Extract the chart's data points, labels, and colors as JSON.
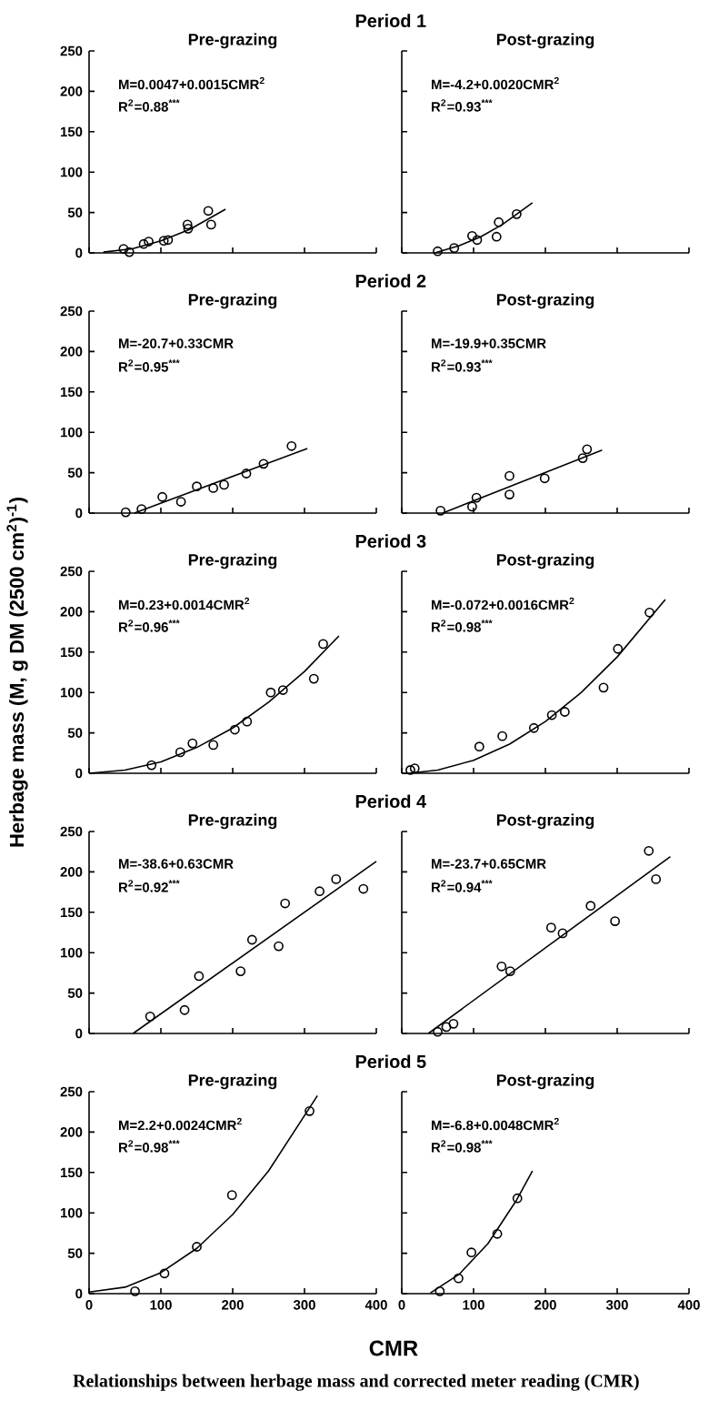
{
  "chart_data": [
    {
      "type": "scatter",
      "title": "Period 1",
      "subtitle": "Pre-grazing",
      "xlim": [
        0,
        400
      ],
      "ylim": [
        0,
        250
      ],
      "xticks": [
        0,
        100,
        200,
        300,
        400
      ],
      "yticks": [
        0,
        50,
        100,
        150,
        200,
        250
      ],
      "tick_labels": "y",
      "annotations": [
        "M=0.0047+0.0015CMR$^{2}$",
        "R$^{2}$=0.88$^{***}$"
      ],
      "series": [
        {
          "marker": "circle",
          "color": "#000000",
          "x": [
            48,
            56,
            76,
            83,
            104,
            110,
            137,
            138,
            166,
            170
          ],
          "values": [
            5,
            1,
            11,
            14,
            15,
            16,
            35,
            30,
            52,
            35
          ]
        },
        {
          "type": "line",
          "color": "#000000",
          "x": [
            20,
            60,
            100,
            140,
            190
          ],
          "values": [
            1,
            5,
            15,
            29,
            54
          ]
        }
      ]
    },
    {
      "type": "scatter",
      "subtitle": "Post-grazing",
      "xlim": [
        0,
        400
      ],
      "ylim": [
        0,
        250
      ],
      "xticks": [
        0,
        100,
        200,
        300,
        400
      ],
      "yticks": [
        0,
        50,
        100,
        150,
        200,
        250
      ],
      "tick_labels": false,
      "annotations": [
        "M=-4.2+0.0020CMR$^{2}$",
        "R$^{2}$=0.93$^{***}$"
      ],
      "series": [
        {
          "marker": "circle",
          "color": "#000000",
          "x": [
            50,
            73,
            98,
            105,
            132,
            135,
            160
          ],
          "values": [
            2,
            6,
            21,
            16,
            20,
            38,
            48
          ]
        },
        {
          "type": "line",
          "color": "#000000",
          "x": [
            46,
            80,
            110,
            140,
            182
          ],
          "values": [
            0,
            9,
            20,
            35,
            62
          ]
        }
      ]
    },
    {
      "type": "scatter",
      "title": "Period 2",
      "subtitle": "Pre-grazing",
      "xlim": [
        0,
        400
      ],
      "ylim": [
        0,
        250
      ],
      "xticks": [
        0,
        100,
        200,
        300,
        400
      ],
      "yticks": [
        0,
        50,
        100,
        150,
        200,
        250
      ],
      "tick_labels": "y",
      "annotations": [
        "M=-20.7+0.33CMR",
        "R$^{2}$=0.95$^{***}$"
      ],
      "series": [
        {
          "marker": "circle",
          "color": "#000000",
          "x": [
            51,
            73,
            102,
            128,
            150,
            173,
            188,
            219,
            243,
            282
          ],
          "values": [
            1,
            5,
            20,
            14,
            33,
            31,
            35,
            49,
            61,
            83
          ]
        },
        {
          "type": "line",
          "color": "#000000",
          "x": [
            63,
            304
          ],
          "values": [
            0,
            80
          ]
        }
      ]
    },
    {
      "type": "scatter",
      "subtitle": "Post-grazing",
      "xlim": [
        0,
        400
      ],
      "ylim": [
        0,
        250
      ],
      "xticks": [
        0,
        100,
        200,
        300,
        400
      ],
      "yticks": [
        0,
        50,
        100,
        150,
        200,
        250
      ],
      "tick_labels": false,
      "annotations": [
        "M=-19.9+0.35CMR",
        "R$^{2}$=0.93$^{***}$"
      ],
      "series": [
        {
          "marker": "circle",
          "color": "#000000",
          "x": [
            54,
            98,
            104,
            150,
            150,
            199,
            252,
            258
          ],
          "values": [
            3,
            8,
            19,
            23,
            46,
            43,
            68,
            79
          ]
        },
        {
          "type": "line",
          "color": "#000000",
          "x": [
            57,
            279
          ],
          "values": [
            0,
            78
          ]
        }
      ]
    },
    {
      "type": "scatter",
      "title": "Period 3",
      "subtitle": "Pre-grazing",
      "ylabel": "Herbage mass (M, g DM (2500 cm$^{2}$)$^{-1}$)",
      "xlim": [
        0,
        400
      ],
      "ylim": [
        0,
        250
      ],
      "xticks": [
        0,
        100,
        200,
        300,
        400
      ],
      "yticks": [
        0,
        50,
        100,
        150,
        200,
        250
      ],
      "tick_labels": "y",
      "annotations": [
        "M=0.23+0.0014CMR$^{2}$",
        "R$^{2}$=0.96$^{***}$"
      ],
      "series": [
        {
          "marker": "circle",
          "color": "#000000",
          "x": [
            87,
            127,
            144,
            173,
            203,
            220,
            253,
            270,
            313,
            326
          ],
          "values": [
            10,
            26,
            37,
            35,
            54,
            64,
            100,
            103,
            117,
            160
          ]
        },
        {
          "type": "line",
          "color": "#000000",
          "x": [
            0,
            50,
            100,
            150,
            200,
            250,
            300,
            348
          ],
          "values": [
            0,
            4,
            14,
            32,
            56,
            88,
            126,
            170
          ]
        }
      ]
    },
    {
      "type": "scatter",
      "subtitle": "Post-grazing",
      "xlim": [
        0,
        400
      ],
      "ylim": [
        0,
        250
      ],
      "xticks": [
        0,
        100,
        200,
        300,
        400
      ],
      "yticks": [
        0,
        50,
        100,
        150,
        200,
        250
      ],
      "tick_labels": false,
      "annotations": [
        "M=-0.072+0.0016CMR$^{2}$",
        "R$^{2}$=0.98$^{***}$"
      ],
      "series": [
        {
          "marker": "circle",
          "color": "#000000",
          "x": [
            12,
            18,
            108,
            140,
            184,
            209,
            227,
            281,
            301,
            345
          ],
          "values": [
            4,
            6,
            33,
            46,
            56,
            72,
            76,
            106,
            154,
            199
          ]
        },
        {
          "type": "line",
          "color": "#000000",
          "x": [
            10,
            50,
            100,
            150,
            200,
            250,
            300,
            367
          ],
          "values": [
            0,
            4,
            16,
            36,
            64,
            100,
            144,
            215
          ]
        }
      ]
    },
    {
      "type": "scatter",
      "title": "Period 4",
      "subtitle": "Pre-grazing",
      "xlim": [
        0,
        400
      ],
      "ylim": [
        0,
        250
      ],
      "xticks": [
        0,
        100,
        200,
        300,
        400
      ],
      "yticks": [
        0,
        50,
        100,
        150,
        200,
        250
      ],
      "tick_labels": "y",
      "annotations": [
        "M=-38.6+0.63CMR",
        "R$^{2}$=0.92$^{***}$"
      ],
      "series": [
        {
          "marker": "circle",
          "color": "#000000",
          "x": [
            85,
            133,
            153,
            211,
            227,
            264,
            273,
            321,
            344,
            382
          ],
          "values": [
            21,
            29,
            71,
            77,
            116,
            108,
            161,
            176,
            191,
            179
          ]
        },
        {
          "type": "line",
          "color": "#000000",
          "x": [
            61.3,
            400
          ],
          "values": [
            0,
            213
          ]
        }
      ]
    },
    {
      "type": "scatter",
      "subtitle": "Post-grazing",
      "xlim": [
        0,
        400
      ],
      "ylim": [
        0,
        250
      ],
      "xticks": [
        0,
        100,
        200,
        300,
        400
      ],
      "yticks": [
        0,
        50,
        100,
        150,
        200,
        250
      ],
      "tick_labels": false,
      "annotations": [
        "M=-23.7+0.65CMR",
        "R$^{2}$=0.94$^{***}$"
      ],
      "series": [
        {
          "marker": "circle",
          "color": "#000000",
          "x": [
            50,
            62,
            72,
            139,
            151,
            208,
            224,
            263,
            297,
            344,
            354
          ],
          "values": [
            2,
            8,
            12,
            83,
            77,
            131,
            124,
            158,
            139,
            226,
            191
          ]
        },
        {
          "type": "line",
          "color": "#000000",
          "x": [
            37,
            374
          ],
          "values": [
            0,
            219
          ]
        }
      ]
    },
    {
      "type": "scatter",
      "title": "Period 5",
      "subtitle": "Pre-grazing",
      "xlabel": "CMR",
      "xlim": [
        0,
        400
      ],
      "ylim": [
        0,
        250
      ],
      "xticks": [
        0,
        100,
        200,
        300,
        400
      ],
      "yticks": [
        0,
        50,
        100,
        150,
        200,
        250
      ],
      "annotations": [
        "M=2.2+0.0024CMR$^{2}$",
        "R$^{2}$=0.98$^{***}$",
        "Relationships between herbage mass and corrected meter reading (CMR)"
      ],
      "series": [
        {
          "marker": "circle",
          "color": "#000000",
          "x": [
            64,
            105,
            150,
            199,
            307
          ],
          "values": [
            3,
            25,
            58,
            122,
            226
          ]
        },
        {
          "type": "line",
          "color": "#000000",
          "x": [
            0,
            50,
            100,
            150,
            200,
            250,
            318
          ],
          "values": [
            2,
            8,
            26,
            56,
            98,
            152,
            245
          ]
        }
      ]
    },
    {
      "type": "scatter",
      "subtitle": "Post-grazing",
      "xlim": [
        0,
        400
      ],
      "ylim": [
        0,
        250
      ],
      "xticks": [
        0,
        100,
        200,
        300,
        400
      ],
      "yticks": [
        0,
        50,
        100,
        150,
        200,
        250
      ],
      "tick_labels": "x",
      "annotations": [
        "M=-6.8+0.0048CMR$^{2}$",
        "R$^{2}$=0.98$^{***}$"
      ],
      "series": [
        {
          "marker": "circle",
          "color": "#000000",
          "x": [
            53,
            79,
            97,
            133,
            161
          ],
          "values": [
            3,
            19,
            51,
            74,
            118
          ]
        },
        {
          "type": "line",
          "color": "#000000",
          "x": [
            40,
            80,
            120,
            160,
            182
          ],
          "values": [
            1,
            24,
            62,
            116,
            152
          ]
        }
      ]
    }
  ]
}
